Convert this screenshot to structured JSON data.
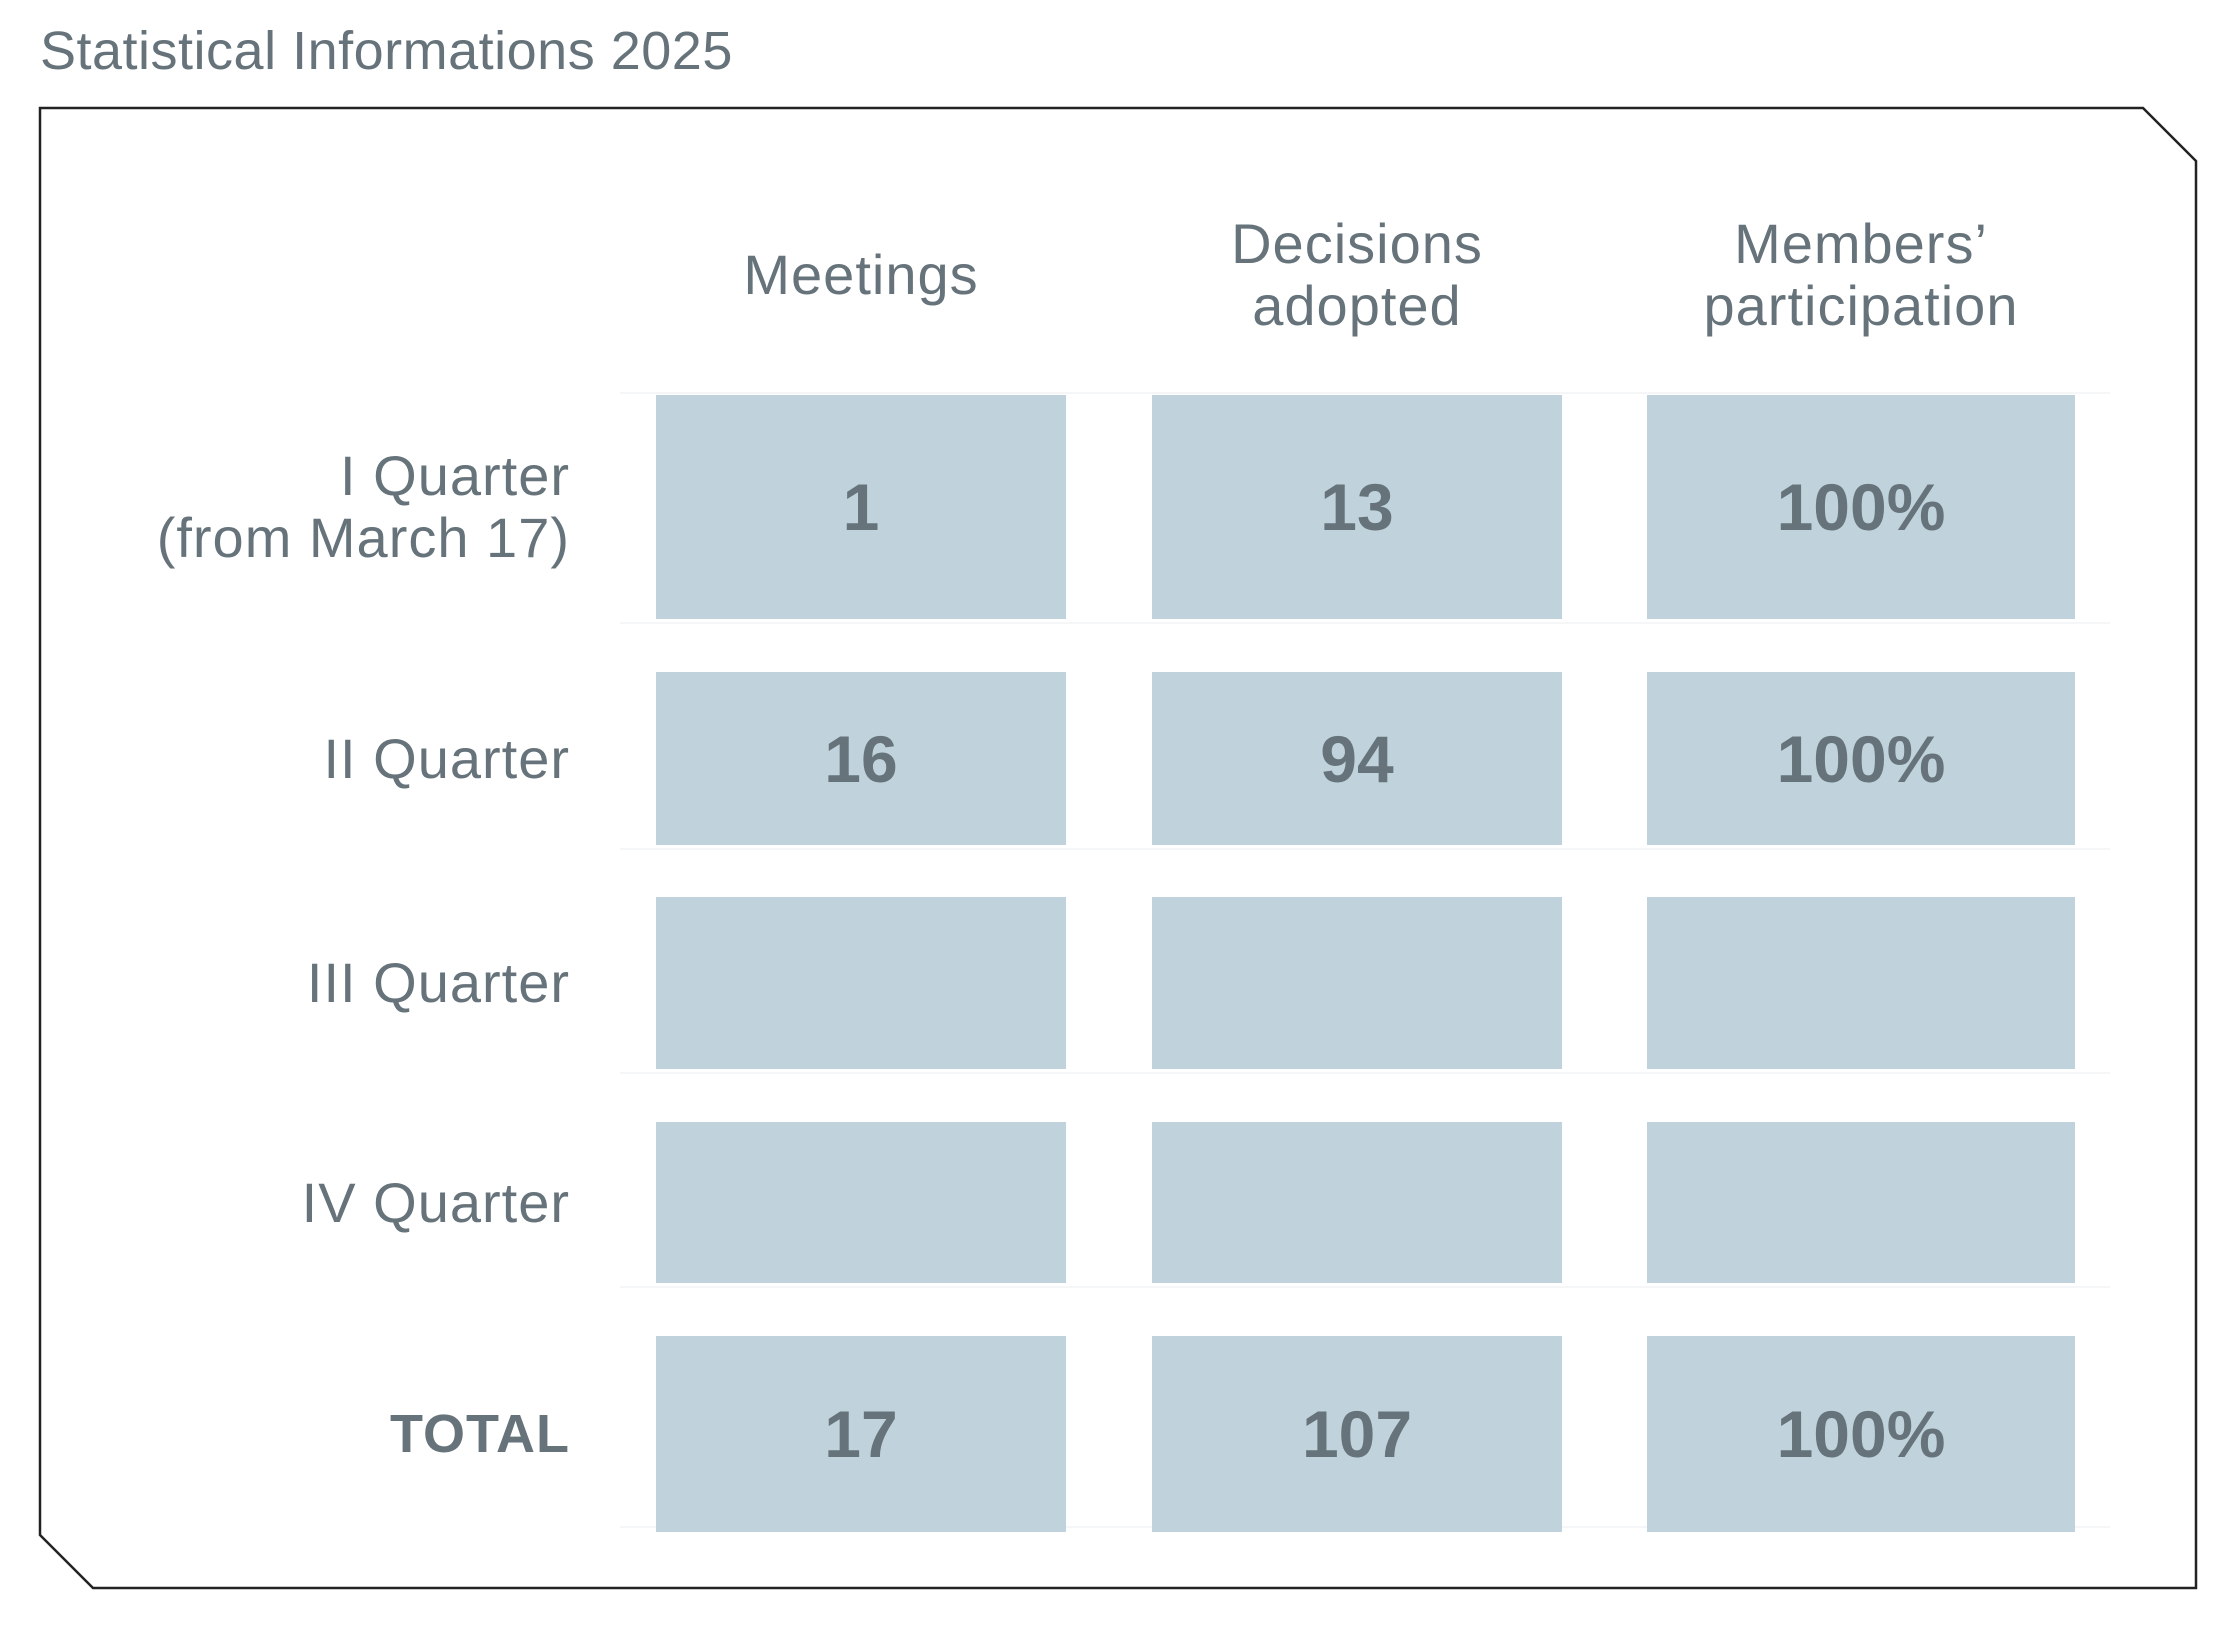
{
  "title": "Statistical Informations 2025",
  "colors": {
    "text": "#66737a",
    "cell_fill": "#c0d3dc",
    "border": "#222222"
  },
  "table": {
    "columns": [
      {
        "label": "Meetings"
      },
      {
        "label": "Decisions adopted",
        "line1": "Decisions",
        "line2": "adopted"
      },
      {
        "label": "Members’ participation",
        "line1": "Members’",
        "line2": "participation"
      }
    ],
    "rows": [
      {
        "label_line1": "I Quarter",
        "label_line2": "(from March 17)",
        "meetings": "1",
        "decisions": "13",
        "participation": "100%"
      },
      {
        "label": "II Quarter",
        "meetings": "16",
        "decisions": "94",
        "participation": "100%"
      },
      {
        "label": "III Quarter",
        "meetings": "",
        "decisions": "",
        "participation": ""
      },
      {
        "label": "IV Quarter",
        "meetings": "",
        "decisions": "",
        "participation": ""
      }
    ],
    "total": {
      "label": "TOTAL",
      "meetings": "17",
      "decisions": "107",
      "participation": "100%"
    }
  }
}
